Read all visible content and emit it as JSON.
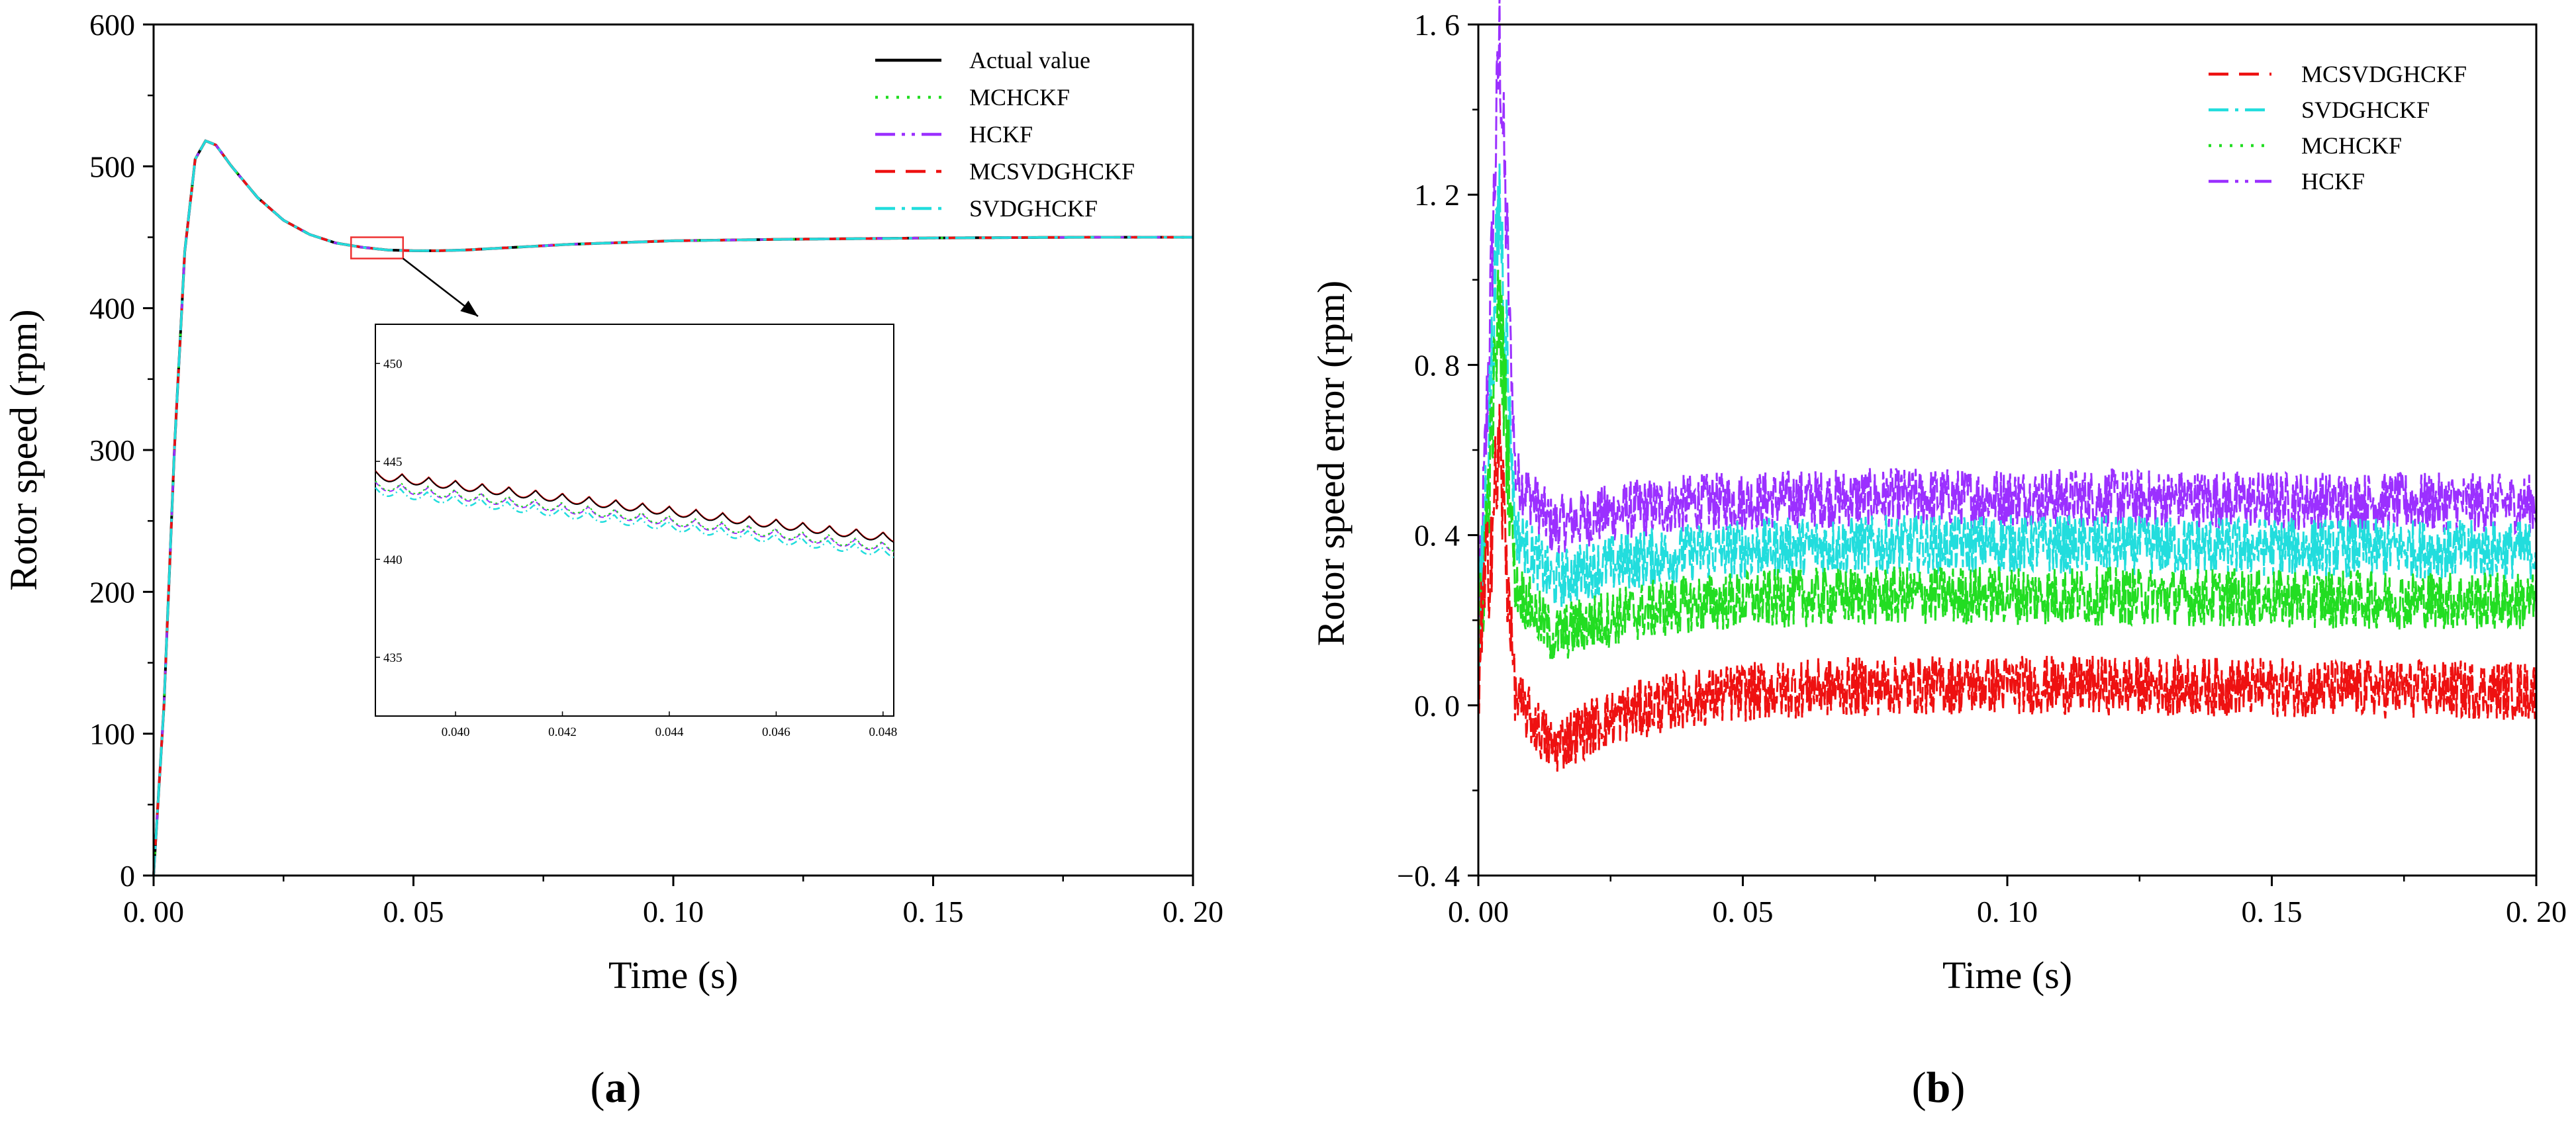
{
  "chart_data": [
    {
      "id": "a",
      "type": "line",
      "caption_prefix": "(",
      "caption_letter": "a",
      "caption_suffix": ")",
      "xlabel": "Time (s)",
      "ylabel": "Rotor speed (rpm)",
      "xlim": [
        0,
        0.2
      ],
      "ylim": [
        0,
        600
      ],
      "xticks": [
        0,
        0.05,
        0.1,
        0.15,
        0.2
      ],
      "xtick_labels": [
        "0. 00",
        "0. 05",
        "0. 10",
        "0. 15",
        "0. 20"
      ],
      "yticks": [
        0,
        100,
        200,
        300,
        400,
        500,
        600
      ],
      "ytick_labels": [
        "0",
        "100",
        "200",
        "300",
        "400",
        "500",
        "600"
      ],
      "legend": [
        "Actual value",
        "MCHCKF",
        "HCKF",
        "MCSVDGHCKF",
        "SVDGHCKF"
      ],
      "series": [
        {
          "name": "Actual value",
          "color": "#000000",
          "style": "solid"
        },
        {
          "name": "MCHCKF",
          "color": "#22dd22",
          "style": "dotted"
        },
        {
          "name": "HCKF",
          "color": "#9b30ff",
          "style": "dashdotdot"
        },
        {
          "name": "MCSVDGHCKF",
          "color": "#ee1111",
          "style": "dashed"
        },
        {
          "name": "SVDGHCKF",
          "color": "#22dddd",
          "style": "dashdot"
        }
      ],
      "curve_points": {
        "x": [
          0,
          0.002,
          0.004,
          0.006,
          0.008,
          0.01,
          0.012,
          0.015,
          0.02,
          0.025,
          0.03,
          0.035,
          0.04,
          0.045,
          0.05,
          0.055,
          0.06,
          0.07,
          0.08,
          0.1,
          0.12,
          0.15,
          0.18,
          0.2
        ],
        "y": [
          0,
          120,
          300,
          440,
          505,
          518,
          515,
          500,
          478,
          462,
          452,
          446,
          443,
          441,
          440.5,
          440.5,
          441,
          443,
          445,
          447.5,
          448.5,
          449.5,
          450,
          450
        ]
      },
      "zoom_box": {
        "x_range": [
          0.038,
          0.048
        ],
        "y_range": [
          435,
          450
        ]
      },
      "inset": {
        "xlim": [
          0.0385,
          0.0482
        ],
        "ylim": [
          432,
          452
        ],
        "xticks": [
          0.04,
          0.042,
          0.044,
          0.046,
          0.048
        ],
        "xtick_labels": [
          "0.040",
          "0.042",
          "0.044",
          "0.046",
          "0.048"
        ],
        "yticks": [
          435,
          440,
          445,
          450
        ],
        "ytick_labels": [
          "435",
          "440",
          "445",
          "450"
        ],
        "actual_start": 444.5,
        "actual_end": 441.3,
        "estimate_offset": -0.5,
        "ripple_amplitude": 0.45,
        "ripple_period": 0.0005
      }
    },
    {
      "id": "b",
      "type": "line",
      "caption_prefix": "(",
      "caption_letter": "b",
      "caption_suffix": ")",
      "xlabel": "Time (s)",
      "ylabel": "Rotor speed error (rpm)",
      "xlim": [
        0,
        0.2
      ],
      "ylim": [
        -0.4,
        1.6
      ],
      "xticks": [
        0,
        0.05,
        0.1,
        0.15,
        0.2
      ],
      "xtick_labels": [
        "0. 00",
        "0. 05",
        "0. 10",
        "0. 15",
        "0. 20"
      ],
      "yticks": [
        -0.4,
        0,
        0.4,
        0.8,
        1.2,
        1.6
      ],
      "ytick_labels": [
        "−0. 4",
        "0. 0",
        "0. 4",
        "0. 8",
        "1. 2",
        "1. 6"
      ],
      "legend": [
        "MCSVDGHCKF",
        "SVDGHCKF",
        "MCHCKF",
        "HCKF"
      ],
      "series": [
        {
          "name": "HCKF",
          "color": "#9b30ff",
          "steady_mean": 0.47,
          "noise": 0.07,
          "peak": 1.57,
          "dip": 0.42
        },
        {
          "name": "SVDGHCKF",
          "color": "#22dddd",
          "steady_mean": 0.36,
          "noise": 0.07,
          "peak": 1.2,
          "dip": 0.29
        },
        {
          "name": "MCHCKF",
          "color": "#22dd22",
          "steady_mean": 0.24,
          "noise": 0.07,
          "peak": 0.95,
          "dip": 0.16
        },
        {
          "name": "MCSVDGHCKF",
          "color": "#ee1111",
          "steady_mean": 0.03,
          "noise": 0.07,
          "peak": 0.6,
          "dip": -0.1
        }
      ]
    }
  ]
}
